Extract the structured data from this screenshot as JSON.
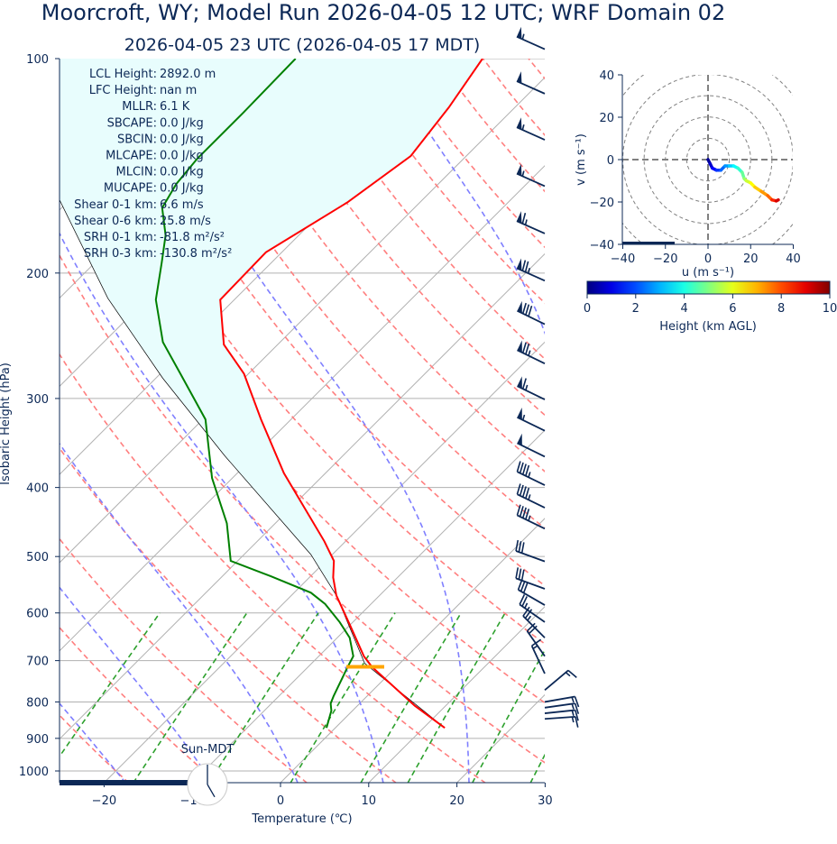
{
  "title": "Moorcroft, WY; Model Run 2026-04-05 12 UTC; WRF Domain 02",
  "subtitle": "2026-04-05 23 UTC  (2026-04-05 17 MDT)",
  "colors": {
    "text": "#0c2856",
    "temperature": "#ff0000",
    "dewpoint": "#008000",
    "parcel": "#000000",
    "cin_shade": "#e8fdfd",
    "lcl": "#ffa500",
    "dry_adiabat": "#ff7f7f",
    "moist_adiabat": "#7f7fff",
    "mixing_ratio": "#2ca02c",
    "isotherm": "#b0b0b0",
    "barbs": "#0c2856"
  },
  "stats": [
    {
      "label": "LCL Height:",
      "value": "2892.0 m"
    },
    {
      "label": "LFC Height:",
      "value": "nan m"
    },
    {
      "label": "MLLR:",
      "value": "6.1 K"
    },
    {
      "label": "SBCAPE:",
      "value": "0.0 J/kg"
    },
    {
      "label": "SBCIN:",
      "value": "0.0 J/kg"
    },
    {
      "label": "MLCAPE:",
      "value": "0.0 J/kg"
    },
    {
      "label": "MLCIN:",
      "value": "0.0 J/kg"
    },
    {
      "label": "MUCAPE:",
      "value": "0.0 J/kg"
    },
    {
      "label": "Shear 0-1 km:",
      "value": "6.6 m/s"
    },
    {
      "label": "Shear 0-6 km:",
      "value": "25.8 m/s"
    },
    {
      "label": "SRH 0-1 km:",
      "value": "-81.8 m²/s²"
    },
    {
      "label": "SRH 0-3 km:",
      "value": "-130.8 m²/s²"
    }
  ],
  "clock_label": "Sun-MDT",
  "clock_time": {
    "hour": 17,
    "minute": 0
  },
  "chart_data": [
    {
      "type": "skew-t",
      "xlabel": "Temperature (℃)",
      "ylabel": "Isobaric Height (hPa)",
      "xlim": [
        -25,
        30
      ],
      "ylim": [
        1040,
        100
      ],
      "y_scale": "log",
      "grid": true,
      "xticks": [
        -20,
        -10,
        0,
        10,
        20,
        30
      ],
      "yticks": [
        100,
        200,
        300,
        400,
        500,
        600,
        700,
        800,
        900,
        1000
      ],
      "lcl_pressure": 712,
      "temperature": {
        "pressure": [
          870,
          810,
          715,
          690,
          624,
          567,
          535,
          507,
          476,
          382,
          321,
          277,
          252,
          218,
          187,
          159,
          137,
          117,
          100
        ],
        "values": [
          12.4,
          6.5,
          -2.7,
          -4.9,
          -10.0,
          -14.9,
          -17.3,
          -19.1,
          -22.4,
          -34.7,
          -43.4,
          -50.5,
          -56.1,
          -61.6,
          -61.8,
          -58.2,
          -56.3,
          -57.5,
          -59.2
        ]
      },
      "dewpoint": {
        "pressure": [
          870,
          823,
          804,
          785,
          715,
          690,
          650,
          618,
          583,
          562,
          533,
          507,
          449,
          388,
          321,
          277,
          250,
          218,
          193,
          177,
          162,
          150,
          138,
          119,
          100
        ],
        "values": [
          -1.0,
          -2.4,
          -3.3,
          -3.8,
          -5.5,
          -6.1,
          -8.6,
          -11.5,
          -15.2,
          -18.1,
          -24.5,
          -30.8,
          -35.5,
          -42.3,
          -49.7,
          -57.7,
          -63.3,
          -68.9,
          -72.5,
          -75.1,
          -78.6,
          -79.7,
          -80.2,
          -80.2,
          -80.4
        ]
      },
      "parcel": {
        "pressure": [
          870,
          706,
          567,
          497,
          442,
          361,
          281,
          217,
          158
        ],
        "values": [
          12.4,
          -4.0,
          -14.9,
          -22.4,
          -30.1,
          -43.4,
          -59.2,
          -74.5,
          -91.1
        ]
      },
      "wind_barbs": [
        {
          "pressure": 97,
          "direction": 294,
          "speed_kt": 55
        },
        {
          "pressure": 112,
          "direction": 294,
          "speed_kt": 50
        },
        {
          "pressure": 130,
          "direction": 294,
          "speed_kt": 55
        },
        {
          "pressure": 151,
          "direction": 294,
          "speed_kt": 55
        },
        {
          "pressure": 176,
          "direction": 294,
          "speed_kt": 65
        },
        {
          "pressure": 205,
          "direction": 294,
          "speed_kt": 75
        },
        {
          "pressure": 236,
          "direction": 296,
          "speed_kt": 80
        },
        {
          "pressure": 268,
          "direction": 296,
          "speed_kt": 75
        },
        {
          "pressure": 301,
          "direction": 296,
          "speed_kt": 65
        },
        {
          "pressure": 333,
          "direction": 296,
          "speed_kt": 55
        },
        {
          "pressure": 362,
          "direction": 296,
          "speed_kt": 50
        },
        {
          "pressure": 397,
          "direction": 296,
          "speed_kt": 45
        },
        {
          "pressure": 427,
          "direction": 296,
          "speed_kt": 45
        },
        {
          "pressure": 457,
          "direction": 296,
          "speed_kt": 45
        },
        {
          "pressure": 508,
          "direction": 290,
          "speed_kt": 30
        },
        {
          "pressure": 555,
          "direction": 290,
          "speed_kt": 30
        },
        {
          "pressure": 585,
          "direction": 300,
          "speed_kt": 30
        },
        {
          "pressure": 618,
          "direction": 305,
          "speed_kt": 25
        },
        {
          "pressure": 650,
          "direction": 315,
          "speed_kt": 25
        },
        {
          "pressure": 690,
          "direction": 325,
          "speed_kt": 20
        },
        {
          "pressure": 730,
          "direction": 335,
          "speed_kt": 15
        },
        {
          "pressure": 770,
          "direction": 50,
          "speed_kt": 15
        },
        {
          "pressure": 800,
          "direction": 80,
          "speed_kt": 15
        },
        {
          "pressure": 815,
          "direction": 82,
          "speed_kt": 15
        },
        {
          "pressure": 830,
          "direction": 84,
          "speed_kt": 15
        },
        {
          "pressure": 845,
          "direction": 86,
          "speed_kt": 15
        }
      ]
    },
    {
      "type": "hodograph",
      "xlabel": "u (m s⁻¹)",
      "ylabel": "v (m s⁻¹)",
      "xlim": [
        -40,
        40
      ],
      "ylim": [
        -40,
        40
      ],
      "xticks": [
        -40,
        -20,
        0,
        20,
        40
      ],
      "yticks": [
        -40,
        -20,
        0,
        20,
        40
      ],
      "ring_interval": 10,
      "u": [
        0,
        1,
        2,
        4,
        6,
        8,
        10,
        12,
        14,
        16,
        17,
        18,
        20,
        22,
        25,
        28,
        30,
        32,
        33
      ],
      "v": [
        0,
        -2,
        -4,
        -5,
        -5,
        -3,
        -3,
        -3,
        -4,
        -6,
        -9,
        -10,
        -11,
        -13,
        -15,
        -17,
        -19,
        -19.5,
        -19
      ],
      "height_km": [
        0,
        0.5,
        1,
        1.5,
        2,
        2.5,
        3,
        3.5,
        4,
        4.5,
        5,
        5.5,
        6,
        6.5,
        7,
        7.5,
        8,
        8.8,
        9.5
      ],
      "colorbar": {
        "label": "Height (km AGL)",
        "range": [
          0,
          10
        ],
        "ticks": [
          0,
          2,
          4,
          6,
          8,
          10
        ],
        "colormap": "jet"
      }
    }
  ]
}
